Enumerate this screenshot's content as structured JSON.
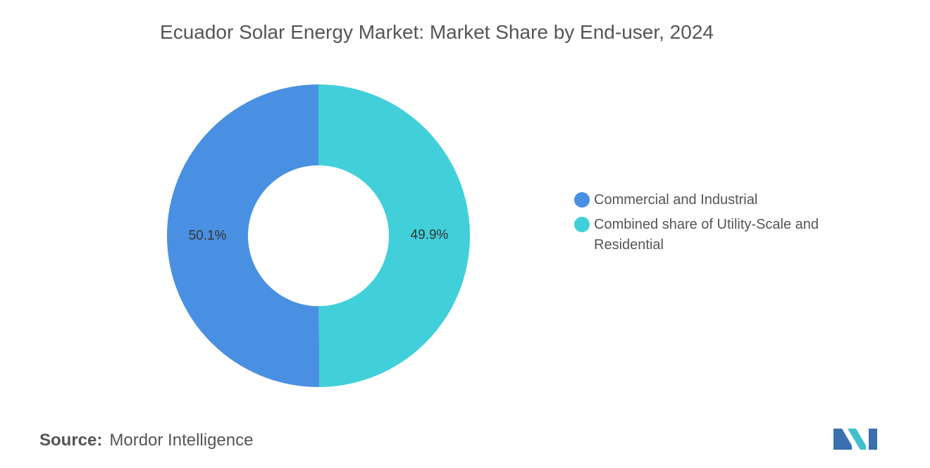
{
  "chart_data": {
    "type": "donut",
    "title": "Ecuador Solar Energy Market: Market Share by End-user, 2024",
    "categories": [
      "Commercial and Industrial",
      "Combined share of Utility-Scale and Residential"
    ],
    "values": [
      50.1,
      49.9
    ],
    "value_labels": [
      "50.1%",
      "49.9%"
    ],
    "colors": [
      "#4a90e2",
      "#41d0da"
    ],
    "legend": "right"
  },
  "footer": {
    "source_label": "Source:",
    "source": "Mordor Intelligence"
  }
}
